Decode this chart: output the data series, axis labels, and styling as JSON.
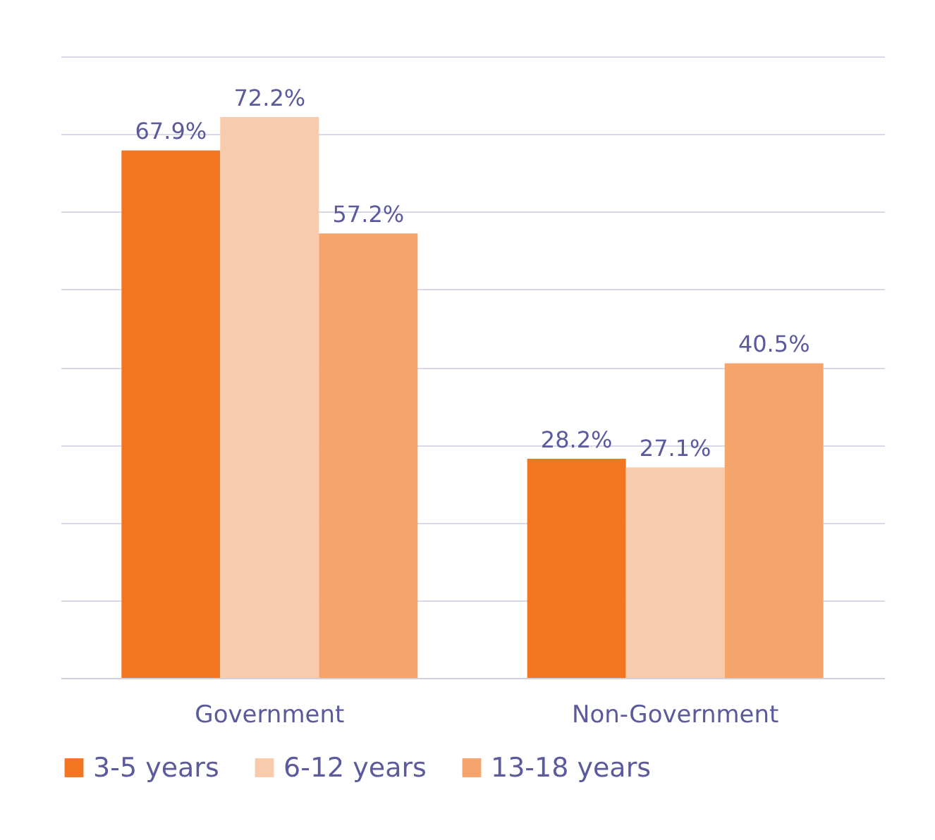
{
  "chart_data": {
    "type": "bar",
    "categories": [
      "Government",
      "Non-Government"
    ],
    "series": [
      {
        "name": "3-5 years",
        "color": "#f47521",
        "values": [
          67.9,
          28.2
        ],
        "value_labels": [
          "67.9%",
          "28.2%"
        ]
      },
      {
        "name": "6-12 years",
        "color": "#f9cbad",
        "values": [
          72.2,
          27.1
        ],
        "value_labels": [
          "72.2%",
          "27.1%"
        ]
      },
      {
        "name": "13-18 years",
        "color": "#f5a46c",
        "values": [
          57.2,
          40.5
        ],
        "value_labels": [
          "57.2%",
          "40.5%"
        ]
      }
    ],
    "ylim": [
      0,
      80
    ],
    "yticks": [
      0,
      10,
      20,
      30,
      40,
      50,
      60,
      70,
      80
    ],
    "grid": "y",
    "tick_labels": "x",
    "legend": "bottom"
  }
}
